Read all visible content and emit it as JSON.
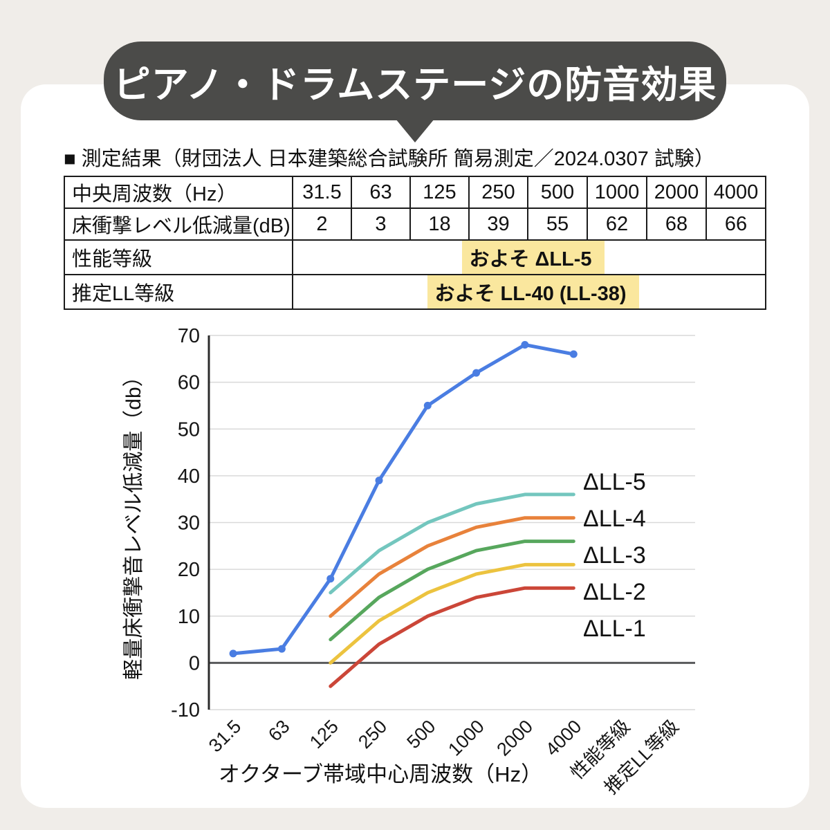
{
  "colors": {
    "background": "#F0EDE9",
    "panel": "#FFFFFF",
    "bubble": "#4B4B49",
    "highlight": "#FAE79E",
    "grid": "#D9D9D9",
    "zero_line": "#58595B",
    "axis": "#2B2B2B"
  },
  "header": {
    "title": "ピアノ・ドラムステージの防音効果",
    "subtitle": "■ 測定結果（財団法人 日本建築総合試験所 簡易測定／2024.0307 試験）"
  },
  "table": {
    "rows": [
      {
        "label": "中央周波数（Hz）",
        "values": [
          "31.5",
          "63",
          "125",
          "250",
          "500",
          "1000",
          "2000",
          "4000"
        ]
      },
      {
        "label": "床衝撃レベル低減量(dB)",
        "values": [
          "2",
          "3",
          "18",
          "39",
          "55",
          "62",
          "68",
          "66"
        ]
      },
      {
        "label": "性能等級",
        "value": "およそ ΔLL-5"
      },
      {
        "label": "推定LL等級",
        "value": "およそ LL-40 (LL-38)"
      }
    ]
  },
  "chart_data": {
    "type": "line",
    "categories": [
      "31.5",
      "63",
      "125",
      "250",
      "500",
      "1000",
      "2000",
      "4000",
      "性能等級",
      "推定LL等級"
    ],
    "xlabel": "オクターブ帯域中心周波数（Hz）",
    "ylabel": "軽量床衝撃音レベル低減量（db）",
    "ylim": [
      -10,
      70
    ],
    "ytick_step": 10,
    "grid": true,
    "legend_position": "right-of-line-ends",
    "series": [
      {
        "id": "measured",
        "color": "#4A7DE2",
        "marker": true,
        "label": null,
        "values": [
          2,
          3,
          18,
          39,
          55,
          62,
          68,
          66,
          null,
          null
        ]
      },
      {
        "id": "dLL-5",
        "color": "#73C6BE",
        "marker": false,
        "label": "ΔLL-5",
        "values": [
          null,
          null,
          15,
          24,
          30,
          34,
          36,
          36,
          null,
          null
        ]
      },
      {
        "id": "dLL-4",
        "color": "#E8823B",
        "marker": false,
        "label": "ΔLL-4",
        "values": [
          null,
          null,
          10,
          19,
          25,
          29,
          31,
          31,
          null,
          null
        ]
      },
      {
        "id": "dLL-3",
        "color": "#57A75D",
        "marker": false,
        "label": "ΔLL-3",
        "values": [
          null,
          null,
          5,
          14,
          20,
          24,
          26,
          26,
          null,
          null
        ]
      },
      {
        "id": "dLL-2",
        "color": "#ECC33F",
        "marker": false,
        "label": "ΔLL-2",
        "values": [
          null,
          null,
          0,
          9,
          15,
          19,
          21,
          21,
          null,
          null
        ]
      },
      {
        "id": "dLL-1",
        "color": "#CB4638",
        "marker": false,
        "label": "ΔLL-1",
        "values": [
          null,
          null,
          -5,
          4,
          10,
          14,
          16,
          16,
          null,
          null
        ]
      }
    ]
  }
}
